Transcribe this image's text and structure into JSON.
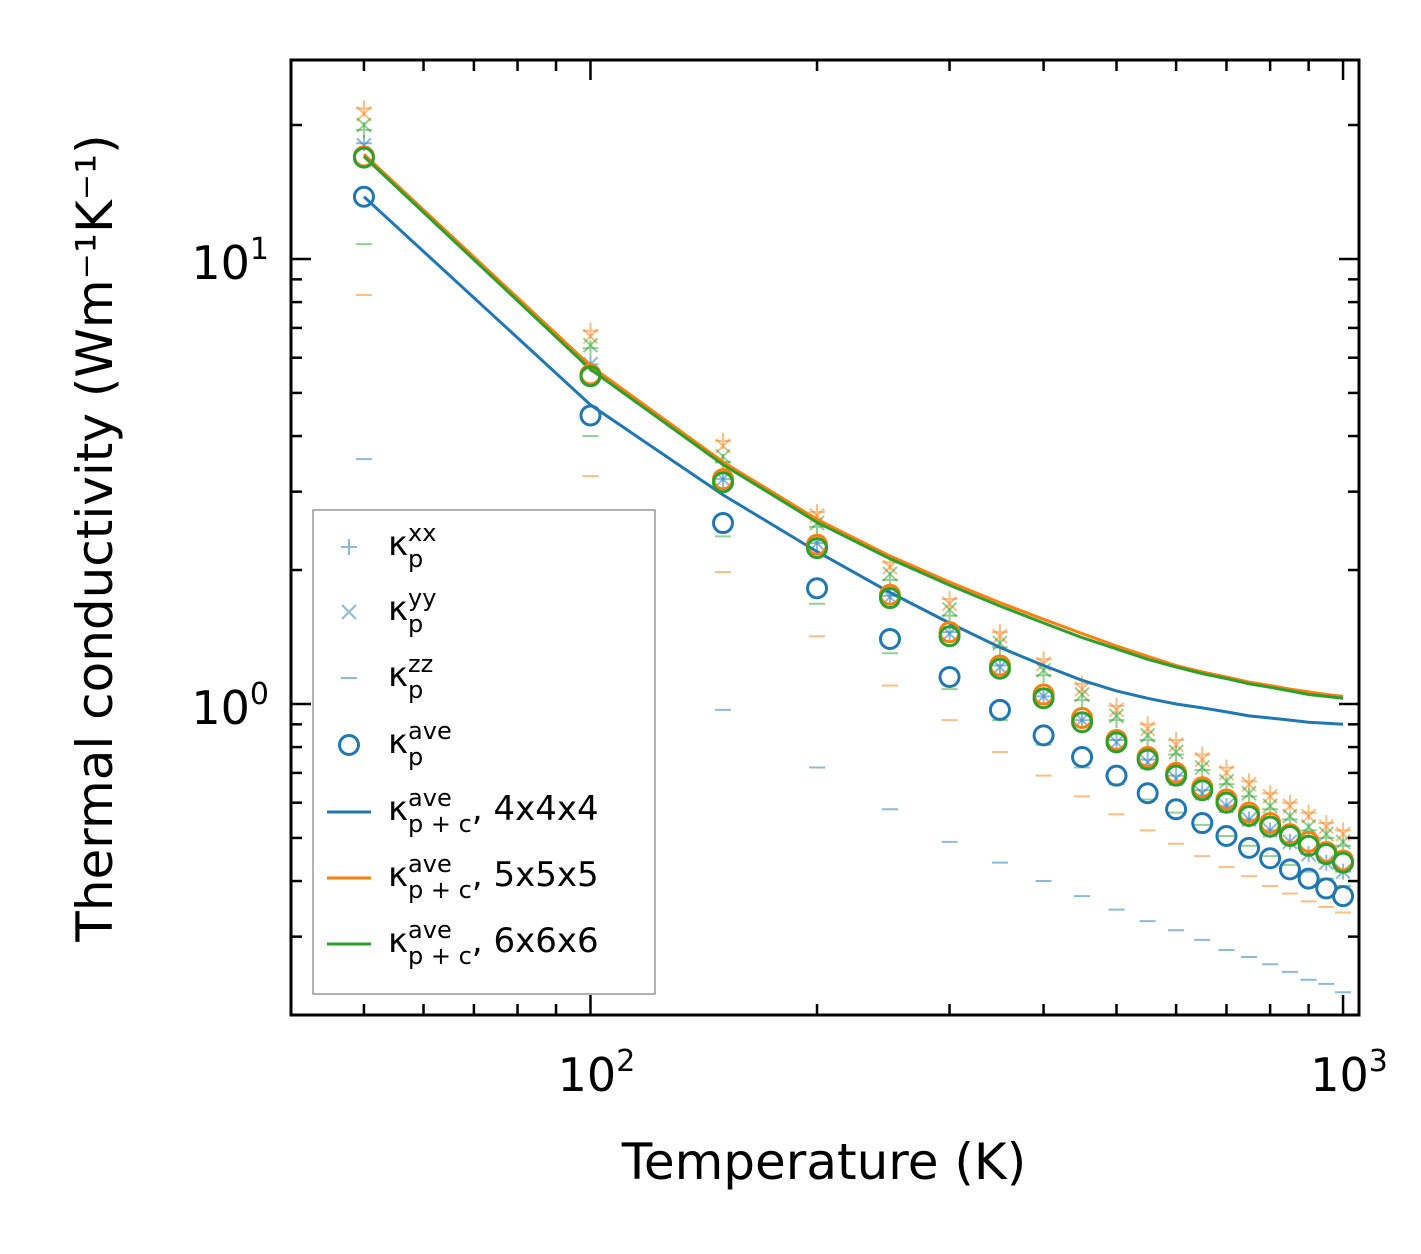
{
  "chart_data": {
    "type": "scatter",
    "title": "",
    "xlabel": "Temperature (K)",
    "ylabel": "Thermal conductivity (Wm⁻¹K⁻¹)",
    "xscale": "log",
    "yscale": "log",
    "xlim": [
      40,
      1050
    ],
    "ylim": [
      0.2,
      28
    ],
    "grid": false,
    "legend_position": "lower-left",
    "x_ticks": [
      {
        "value": 100,
        "base": "10",
        "exp": "2"
      },
      {
        "value": 1000,
        "base": "10",
        "exp": "3"
      }
    ],
    "y_ticks": [
      {
        "value": 1,
        "base": "10",
        "exp": "0"
      },
      {
        "value": 10,
        "base": "10",
        "exp": "1"
      }
    ],
    "x": [
      50,
      100,
      150,
      200,
      250,
      300,
      350,
      400,
      450,
      500,
      550,
      600,
      650,
      700,
      750,
      800,
      850,
      900,
      950,
      1000
    ],
    "colors": {
      "c4": "#1f77b4",
      "c5": "#ff7f0e",
      "c6": "#2ca02c"
    },
    "point_series": [
      {
        "name": "kxx_4",
        "component": "xx",
        "marker": "plus",
        "color": "#1f77b4",
        "values": [
          18.2,
          5.8,
          3.2,
          2.3,
          1.75,
          1.45,
          1.22,
          1.04,
          0.92,
          0.83,
          0.75,
          0.69,
          0.64,
          0.59,
          0.55,
          0.52,
          0.49,
          0.46,
          0.44,
          0.42
        ]
      },
      {
        "name": "kxx_5",
        "component": "xx",
        "marker": "plus",
        "color": "#ff7f0e",
        "values": [
          21.8,
          6.9,
          3.9,
          2.7,
          2.08,
          1.72,
          1.45,
          1.26,
          1.11,
          0.99,
          0.9,
          0.83,
          0.77,
          0.72,
          0.67,
          0.63,
          0.6,
          0.57,
          0.54,
          0.52
        ]
      },
      {
        "name": "kxx_6",
        "component": "xx",
        "marker": "plus",
        "color": "#2ca02c",
        "values": [
          19.5,
          6.3,
          3.5,
          2.5,
          1.9,
          1.58,
          1.34,
          1.16,
          1.02,
          0.92,
          0.83,
          0.77,
          0.71,
          0.66,
          0.62,
          0.58,
          0.55,
          0.52,
          0.5,
          0.48
        ]
      },
      {
        "name": "kyy_4",
        "component": "yy",
        "marker": "cross",
        "color": "#1f77b4",
        "values": [
          18.0,
          5.8,
          3.2,
          2.3,
          1.74,
          1.44,
          1.21,
          1.04,
          0.92,
          0.82,
          0.74,
          0.68,
          0.63,
          0.59,
          0.55,
          0.52,
          0.49,
          0.46,
          0.44,
          0.42
        ]
      },
      {
        "name": "kyy_5",
        "component": "yy",
        "marker": "cross",
        "color": "#ff7f0e",
        "values": [
          21.2,
          6.7,
          3.8,
          2.65,
          2.03,
          1.68,
          1.42,
          1.23,
          1.08,
          0.97,
          0.88,
          0.81,
          0.75,
          0.7,
          0.66,
          0.62,
          0.59,
          0.56,
          0.53,
          0.51
        ]
      },
      {
        "name": "kyy_6",
        "component": "yy",
        "marker": "cross",
        "color": "#2ca02c",
        "values": [
          20.0,
          6.4,
          3.6,
          2.55,
          1.96,
          1.63,
          1.37,
          1.19,
          1.05,
          0.94,
          0.85,
          0.78,
          0.72,
          0.67,
          0.63,
          0.59,
          0.56,
          0.53,
          0.51,
          0.49
        ]
      },
      {
        "name": "kzz_4",
        "component": "zz",
        "marker": "hline",
        "color": "#1f77b4",
        "values": [
          3.55,
          1.53,
          0.97,
          0.72,
          0.58,
          0.49,
          0.44,
          0.4,
          0.37,
          0.345,
          0.325,
          0.31,
          0.295,
          0.28,
          0.27,
          0.26,
          0.25,
          0.24,
          0.235,
          0.225
        ]
      },
      {
        "name": "kzz_5",
        "component": "zz",
        "marker": "hline",
        "color": "#ff7f0e",
        "values": [
          8.3,
          3.25,
          1.98,
          1.42,
          1.1,
          0.92,
          0.78,
          0.69,
          0.62,
          0.565,
          0.52,
          0.485,
          0.455,
          0.43,
          0.41,
          0.39,
          0.375,
          0.36,
          0.35,
          0.34
        ]
      },
      {
        "name": "kzz_6",
        "component": "zz",
        "marker": "hline",
        "color": "#2ca02c",
        "values": [
          10.8,
          4.0,
          2.38,
          1.68,
          1.3,
          1.08,
          0.92,
          0.81,
          0.72,
          0.66,
          0.61,
          0.57,
          0.535,
          0.505,
          0.48,
          0.455,
          0.435,
          0.42,
          0.405,
          0.39
        ]
      },
      {
        "name": "kave_4",
        "component": "ave",
        "marker": "circle",
        "color": "#1f77b4",
        "values": [
          13.8,
          4.45,
          2.55,
          1.82,
          1.4,
          1.15,
          0.97,
          0.85,
          0.76,
          0.69,
          0.63,
          0.58,
          0.54,
          0.505,
          0.475,
          0.45,
          0.425,
          0.405,
          0.385,
          0.37
        ]
      },
      {
        "name": "kave_5",
        "component": "ave",
        "marker": "circle",
        "color": "#ff7f0e",
        "values": [
          17.0,
          5.5,
          3.2,
          2.28,
          1.76,
          1.45,
          1.22,
          1.05,
          0.93,
          0.83,
          0.76,
          0.7,
          0.65,
          0.61,
          0.57,
          0.54,
          0.51,
          0.49,
          0.465,
          0.445
        ]
      },
      {
        "name": "kave_6",
        "component": "ave",
        "marker": "circle",
        "color": "#2ca02c",
        "values": [
          16.9,
          5.45,
          3.15,
          2.24,
          1.73,
          1.42,
          1.2,
          1.03,
          0.91,
          0.82,
          0.75,
          0.69,
          0.64,
          0.6,
          0.56,
          0.53,
          0.505,
          0.48,
          0.46,
          0.44
        ]
      }
    ],
    "line_series": [
      {
        "name": "kpc_4",
        "color": "#1f77b4",
        "values": [
          13.8,
          4.7,
          2.95,
          2.2,
          1.78,
          1.52,
          1.34,
          1.22,
          1.13,
          1.07,
          1.03,
          1.0,
          0.98,
          0.96,
          0.94,
          0.93,
          0.92,
          0.91,
          0.905,
          0.9
        ]
      },
      {
        "name": "kpc_5",
        "color": "#ff7f0e",
        "values": [
          17.2,
          5.75,
          3.5,
          2.6,
          2.15,
          1.88,
          1.69,
          1.55,
          1.44,
          1.35,
          1.28,
          1.22,
          1.18,
          1.15,
          1.12,
          1.1,
          1.08,
          1.065,
          1.05,
          1.04
        ]
      },
      {
        "name": "kpc_6",
        "color": "#2ca02c",
        "values": [
          17.0,
          5.65,
          3.45,
          2.56,
          2.12,
          1.85,
          1.66,
          1.52,
          1.41,
          1.33,
          1.26,
          1.21,
          1.17,
          1.14,
          1.11,
          1.09,
          1.07,
          1.05,
          1.04,
          1.03
        ]
      }
    ],
    "legend": [
      {
        "marker": "plus",
        "color": "#1f77b4",
        "symbol": "κ",
        "sub": "p",
        "sup": "xx",
        "suffix": ""
      },
      {
        "marker": "cross",
        "color": "#1f77b4",
        "symbol": "κ",
        "sub": "p",
        "sup": "yy",
        "suffix": ""
      },
      {
        "marker": "hline",
        "color": "#1f77b4",
        "symbol": "κ",
        "sub": "p",
        "sup": "zz",
        "suffix": ""
      },
      {
        "marker": "circle",
        "color": "#1f77b4",
        "symbol": "κ",
        "sub": "p",
        "sup": "ave",
        "suffix": ""
      },
      {
        "marker": "line",
        "color": "#1f77b4",
        "symbol": "κ",
        "sub": "p + c",
        "sup": "ave",
        "suffix": ", 4x4x4"
      },
      {
        "marker": "line",
        "color": "#ff7f0e",
        "symbol": "κ",
        "sub": "p + c",
        "sup": "ave",
        "suffix": ", 5x5x5"
      },
      {
        "marker": "line",
        "color": "#2ca02c",
        "symbol": "κ",
        "sub": "p + c",
        "sup": "ave",
        "suffix": ", 6x6x6"
      }
    ]
  }
}
